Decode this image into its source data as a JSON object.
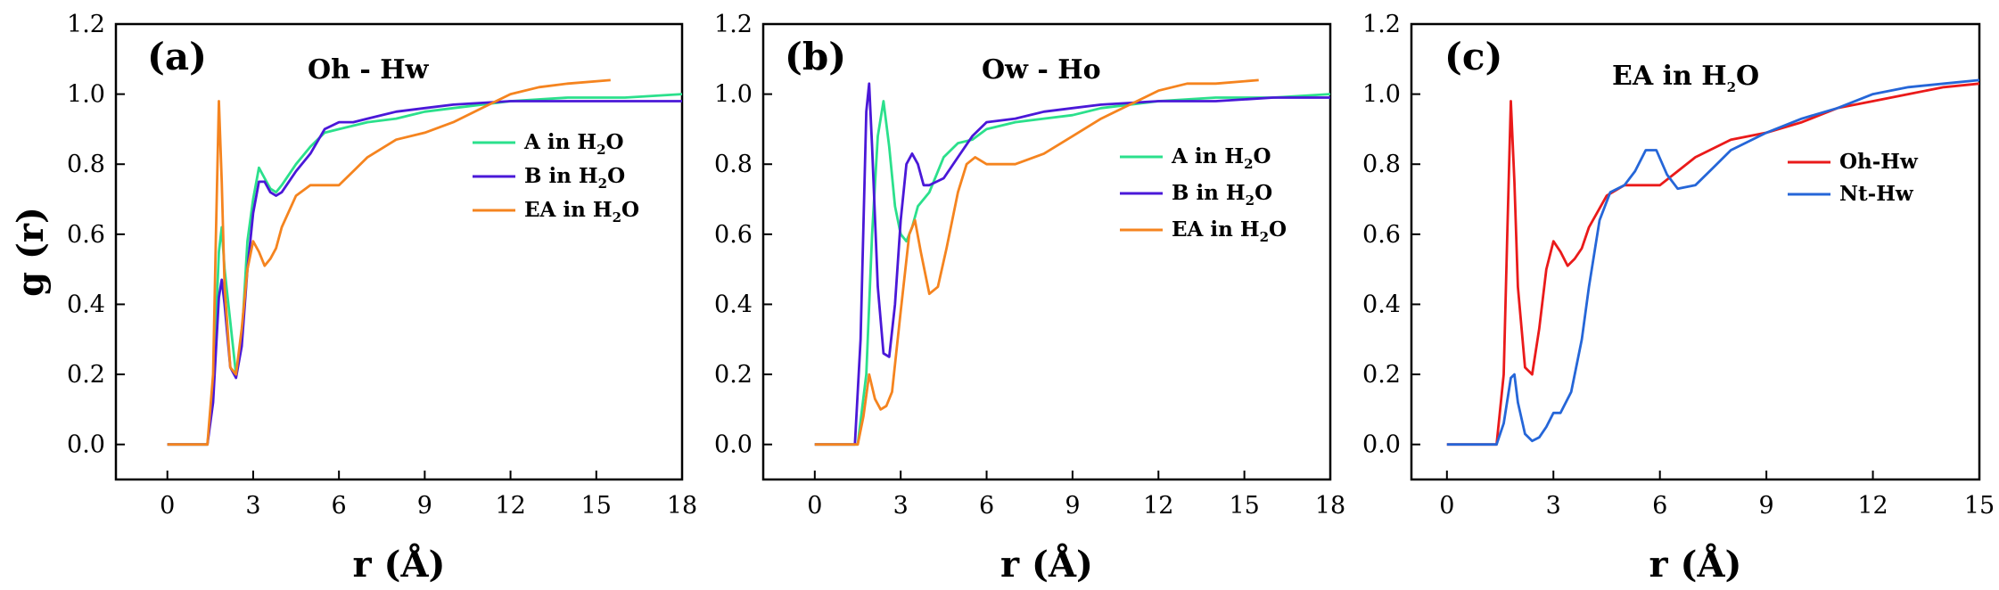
{
  "chart_data": [
    {
      "type": "line",
      "panel_label": "(a)",
      "title": "Oh - Hw",
      "xlabel": "r (Å)",
      "ylabel": "g (r)",
      "xlim": [
        -1.8,
        18
      ],
      "ylim": [
        -0.1,
        1.2
      ],
      "xticks": [
        0,
        3,
        6,
        9,
        12,
        15,
        18
      ],
      "xtick_labels": [
        "0",
        "3",
        "6",
        "9",
        "12",
        "15",
        "18"
      ],
      "yticks": [
        0,
        0.2,
        0.4,
        0.6,
        0.8,
        1.0,
        1.2
      ],
      "ytick_labels": [
        "0.0",
        "0.2",
        "0.4",
        "0.6",
        "0.8",
        "1.0",
        "1.2"
      ],
      "legend_position": "center-right",
      "series": [
        {
          "name": "A in H",
          "sub": "2",
          "suffix": "O",
          "color": "#2be08c",
          "x": [
            0,
            1.4,
            1.6,
            1.8,
            1.9,
            2.0,
            2.2,
            2.4,
            2.6,
            2.8,
            3.0,
            3.2,
            3.4,
            3.6,
            3.8,
            4.0,
            4.5,
            5.0,
            5.5,
            6.0,
            6.5,
            7.0,
            8.0,
            9.0,
            10.0,
            12.0,
            14.0,
            16.0,
            18.0
          ],
          "y": [
            0,
            0,
            0.15,
            0.55,
            0.62,
            0.5,
            0.35,
            0.2,
            0.3,
            0.58,
            0.7,
            0.79,
            0.76,
            0.73,
            0.72,
            0.74,
            0.8,
            0.85,
            0.89,
            0.9,
            0.91,
            0.92,
            0.93,
            0.95,
            0.96,
            0.98,
            0.99,
            0.99,
            1.0
          ]
        },
        {
          "name": "B in H",
          "sub": "2",
          "suffix": "O",
          "color": "#4a18d8",
          "x": [
            0,
            1.4,
            1.6,
            1.8,
            1.9,
            2.0,
            2.2,
            2.4,
            2.6,
            2.8,
            3.0,
            3.2,
            3.4,
            3.6,
            3.8,
            4.0,
            4.5,
            5.0,
            5.5,
            6.0,
            6.5,
            7.0,
            8.0,
            9.0,
            10.0,
            12.0,
            14.0,
            16.0,
            18.0
          ],
          "y": [
            0,
            0,
            0.12,
            0.42,
            0.47,
            0.4,
            0.22,
            0.19,
            0.28,
            0.5,
            0.66,
            0.75,
            0.75,
            0.72,
            0.71,
            0.72,
            0.78,
            0.83,
            0.9,
            0.92,
            0.92,
            0.93,
            0.95,
            0.96,
            0.97,
            0.98,
            0.98,
            0.98,
            0.98
          ]
        },
        {
          "name": "EA in H",
          "sub": "2",
          "suffix": "O",
          "color": "#f5841f",
          "x": [
            0,
            1.4,
            1.6,
            1.7,
            1.8,
            1.9,
            2.0,
            2.2,
            2.4,
            2.6,
            2.8,
            3.0,
            3.2,
            3.4,
            3.6,
            3.8,
            4.0,
            4.5,
            5.0,
            5.5,
            6.0,
            6.5,
            7.0,
            8.0,
            9.0,
            10.0,
            11.0,
            12.0,
            13.0,
            14.0,
            15.5
          ],
          "y": [
            0,
            0,
            0.2,
            0.6,
            0.98,
            0.75,
            0.45,
            0.22,
            0.2,
            0.33,
            0.5,
            0.58,
            0.55,
            0.51,
            0.53,
            0.56,
            0.62,
            0.71,
            0.74,
            0.74,
            0.74,
            0.78,
            0.82,
            0.87,
            0.89,
            0.92,
            0.96,
            1.0,
            1.02,
            1.03,
            1.04
          ]
        }
      ]
    },
    {
      "type": "line",
      "panel_label": "(b)",
      "title": "Ow - Ho",
      "xlabel": "r (Å)",
      "ylabel": "",
      "xlim": [
        -1.8,
        18
      ],
      "ylim": [
        -0.1,
        1.2
      ],
      "xticks": [
        0,
        3,
        6,
        9,
        12,
        15,
        18
      ],
      "xtick_labels": [
        "0",
        "3",
        "6",
        "9",
        "12",
        "15",
        "18"
      ],
      "yticks": [
        0,
        0.2,
        0.4,
        0.6,
        0.8,
        1.0,
        1.2
      ],
      "ytick_labels": [
        "0.0",
        "0.2",
        "0.4",
        "0.6",
        "0.8",
        "1.0",
        "1.2"
      ],
      "legend_position": "center-right",
      "series": [
        {
          "name": "A in H",
          "sub": "2",
          "suffix": "O",
          "color": "#2be08c",
          "x": [
            0,
            1.5,
            1.8,
            2.0,
            2.2,
            2.4,
            2.6,
            2.8,
            3.0,
            3.2,
            3.4,
            3.6,
            4.0,
            4.5,
            5.0,
            5.5,
            6.0,
            7.0,
            8.0,
            9.0,
            10.0,
            12.0,
            14.0,
            16.0,
            18.0
          ],
          "y": [
            0,
            0,
            0.2,
            0.6,
            0.88,
            0.98,
            0.85,
            0.68,
            0.6,
            0.58,
            0.62,
            0.68,
            0.72,
            0.82,
            0.86,
            0.87,
            0.9,
            0.92,
            0.93,
            0.94,
            0.96,
            0.98,
            0.99,
            0.99,
            1.0
          ]
        },
        {
          "name": "B in H",
          "sub": "2",
          "suffix": "O",
          "color": "#4a18d8",
          "x": [
            0,
            1.4,
            1.6,
            1.8,
            1.9,
            2.0,
            2.2,
            2.4,
            2.6,
            2.8,
            3.0,
            3.2,
            3.4,
            3.6,
            3.8,
            4.0,
            4.5,
            5.0,
            5.5,
            6.0,
            7.0,
            8.0,
            9.0,
            10.0,
            12.0,
            14.0,
            16.0,
            18.0
          ],
          "y": [
            0,
            0,
            0.3,
            0.95,
            1.03,
            0.85,
            0.45,
            0.26,
            0.25,
            0.4,
            0.64,
            0.8,
            0.83,
            0.8,
            0.74,
            0.74,
            0.76,
            0.82,
            0.88,
            0.92,
            0.93,
            0.95,
            0.96,
            0.97,
            0.98,
            0.98,
            0.99,
            0.99
          ]
        },
        {
          "name": "EA in H",
          "sub": "2",
          "suffix": "O",
          "color": "#f5841f",
          "x": [
            0,
            1.5,
            1.7,
            1.9,
            2.1,
            2.3,
            2.5,
            2.7,
            3.0,
            3.3,
            3.5,
            3.7,
            4.0,
            4.3,
            4.6,
            5.0,
            5.3,
            5.6,
            6.0,
            7.0,
            8.0,
            9.0,
            10.0,
            11.0,
            12.0,
            13.0,
            14.0,
            15.5
          ],
          "y": [
            0,
            0,
            0.08,
            0.2,
            0.13,
            0.1,
            0.11,
            0.15,
            0.38,
            0.6,
            0.64,
            0.55,
            0.43,
            0.45,
            0.56,
            0.72,
            0.8,
            0.82,
            0.8,
            0.8,
            0.83,
            0.88,
            0.93,
            0.97,
            1.01,
            1.03,
            1.03,
            1.04
          ]
        }
      ]
    },
    {
      "type": "line",
      "panel_label": "(c)",
      "title": "EA in H",
      "title_sub": "2",
      "title_suffix": "O",
      "xlabel": "r (Å)",
      "ylabel": "",
      "xlim": [
        -1.0,
        15
      ],
      "ylim": [
        -0.1,
        1.2
      ],
      "xticks": [
        0,
        3,
        6,
        9,
        12,
        15
      ],
      "xtick_labels": [
        "0",
        "3",
        "6",
        "9",
        "12",
        "15"
      ],
      "yticks": [
        0,
        0.2,
        0.4,
        0.6,
        0.8,
        1.0,
        1.2
      ],
      "ytick_labels": [
        "0.0",
        "0.2",
        "0.4",
        "0.6",
        "0.8",
        "1.0",
        "1.2"
      ],
      "legend_position": "center-right",
      "series": [
        {
          "name": "Oh-Hw",
          "sub": "",
          "suffix": "",
          "color": "#ea1a1a",
          "x": [
            0,
            1.4,
            1.6,
            1.7,
            1.8,
            1.9,
            2.0,
            2.2,
            2.4,
            2.6,
            2.8,
            3.0,
            3.2,
            3.4,
            3.6,
            3.8,
            4.0,
            4.5,
            5.0,
            5.5,
            6.0,
            6.5,
            7.0,
            8.0,
            9.0,
            10.0,
            11.0,
            12.0,
            13.0,
            14.0,
            15.0
          ],
          "y": [
            0,
            0,
            0.2,
            0.6,
            0.98,
            0.75,
            0.45,
            0.22,
            0.2,
            0.33,
            0.5,
            0.58,
            0.55,
            0.51,
            0.53,
            0.56,
            0.62,
            0.71,
            0.74,
            0.74,
            0.74,
            0.78,
            0.82,
            0.87,
            0.89,
            0.92,
            0.96,
            0.98,
            1.0,
            1.02,
            1.03
          ]
        },
        {
          "name": "Nt-Hw",
          "sub": "",
          "suffix": "",
          "color": "#2566d8",
          "x": [
            0,
            1.4,
            1.6,
            1.8,
            1.9,
            2.0,
            2.2,
            2.4,
            2.6,
            2.8,
            3.0,
            3.2,
            3.5,
            3.8,
            4.0,
            4.3,
            4.6,
            5.0,
            5.3,
            5.6,
            5.9,
            6.2,
            6.5,
            7.0,
            7.5,
            8.0,
            9.0,
            10.0,
            11.0,
            12.0,
            13.0,
            14.0,
            15.0
          ],
          "y": [
            0,
            0,
            0.06,
            0.19,
            0.2,
            0.12,
            0.03,
            0.01,
            0.02,
            0.05,
            0.09,
            0.09,
            0.15,
            0.3,
            0.45,
            0.64,
            0.72,
            0.74,
            0.78,
            0.84,
            0.84,
            0.77,
            0.73,
            0.74,
            0.79,
            0.84,
            0.89,
            0.93,
            0.96,
            1.0,
            1.02,
            1.03,
            1.04
          ]
        }
      ]
    }
  ]
}
